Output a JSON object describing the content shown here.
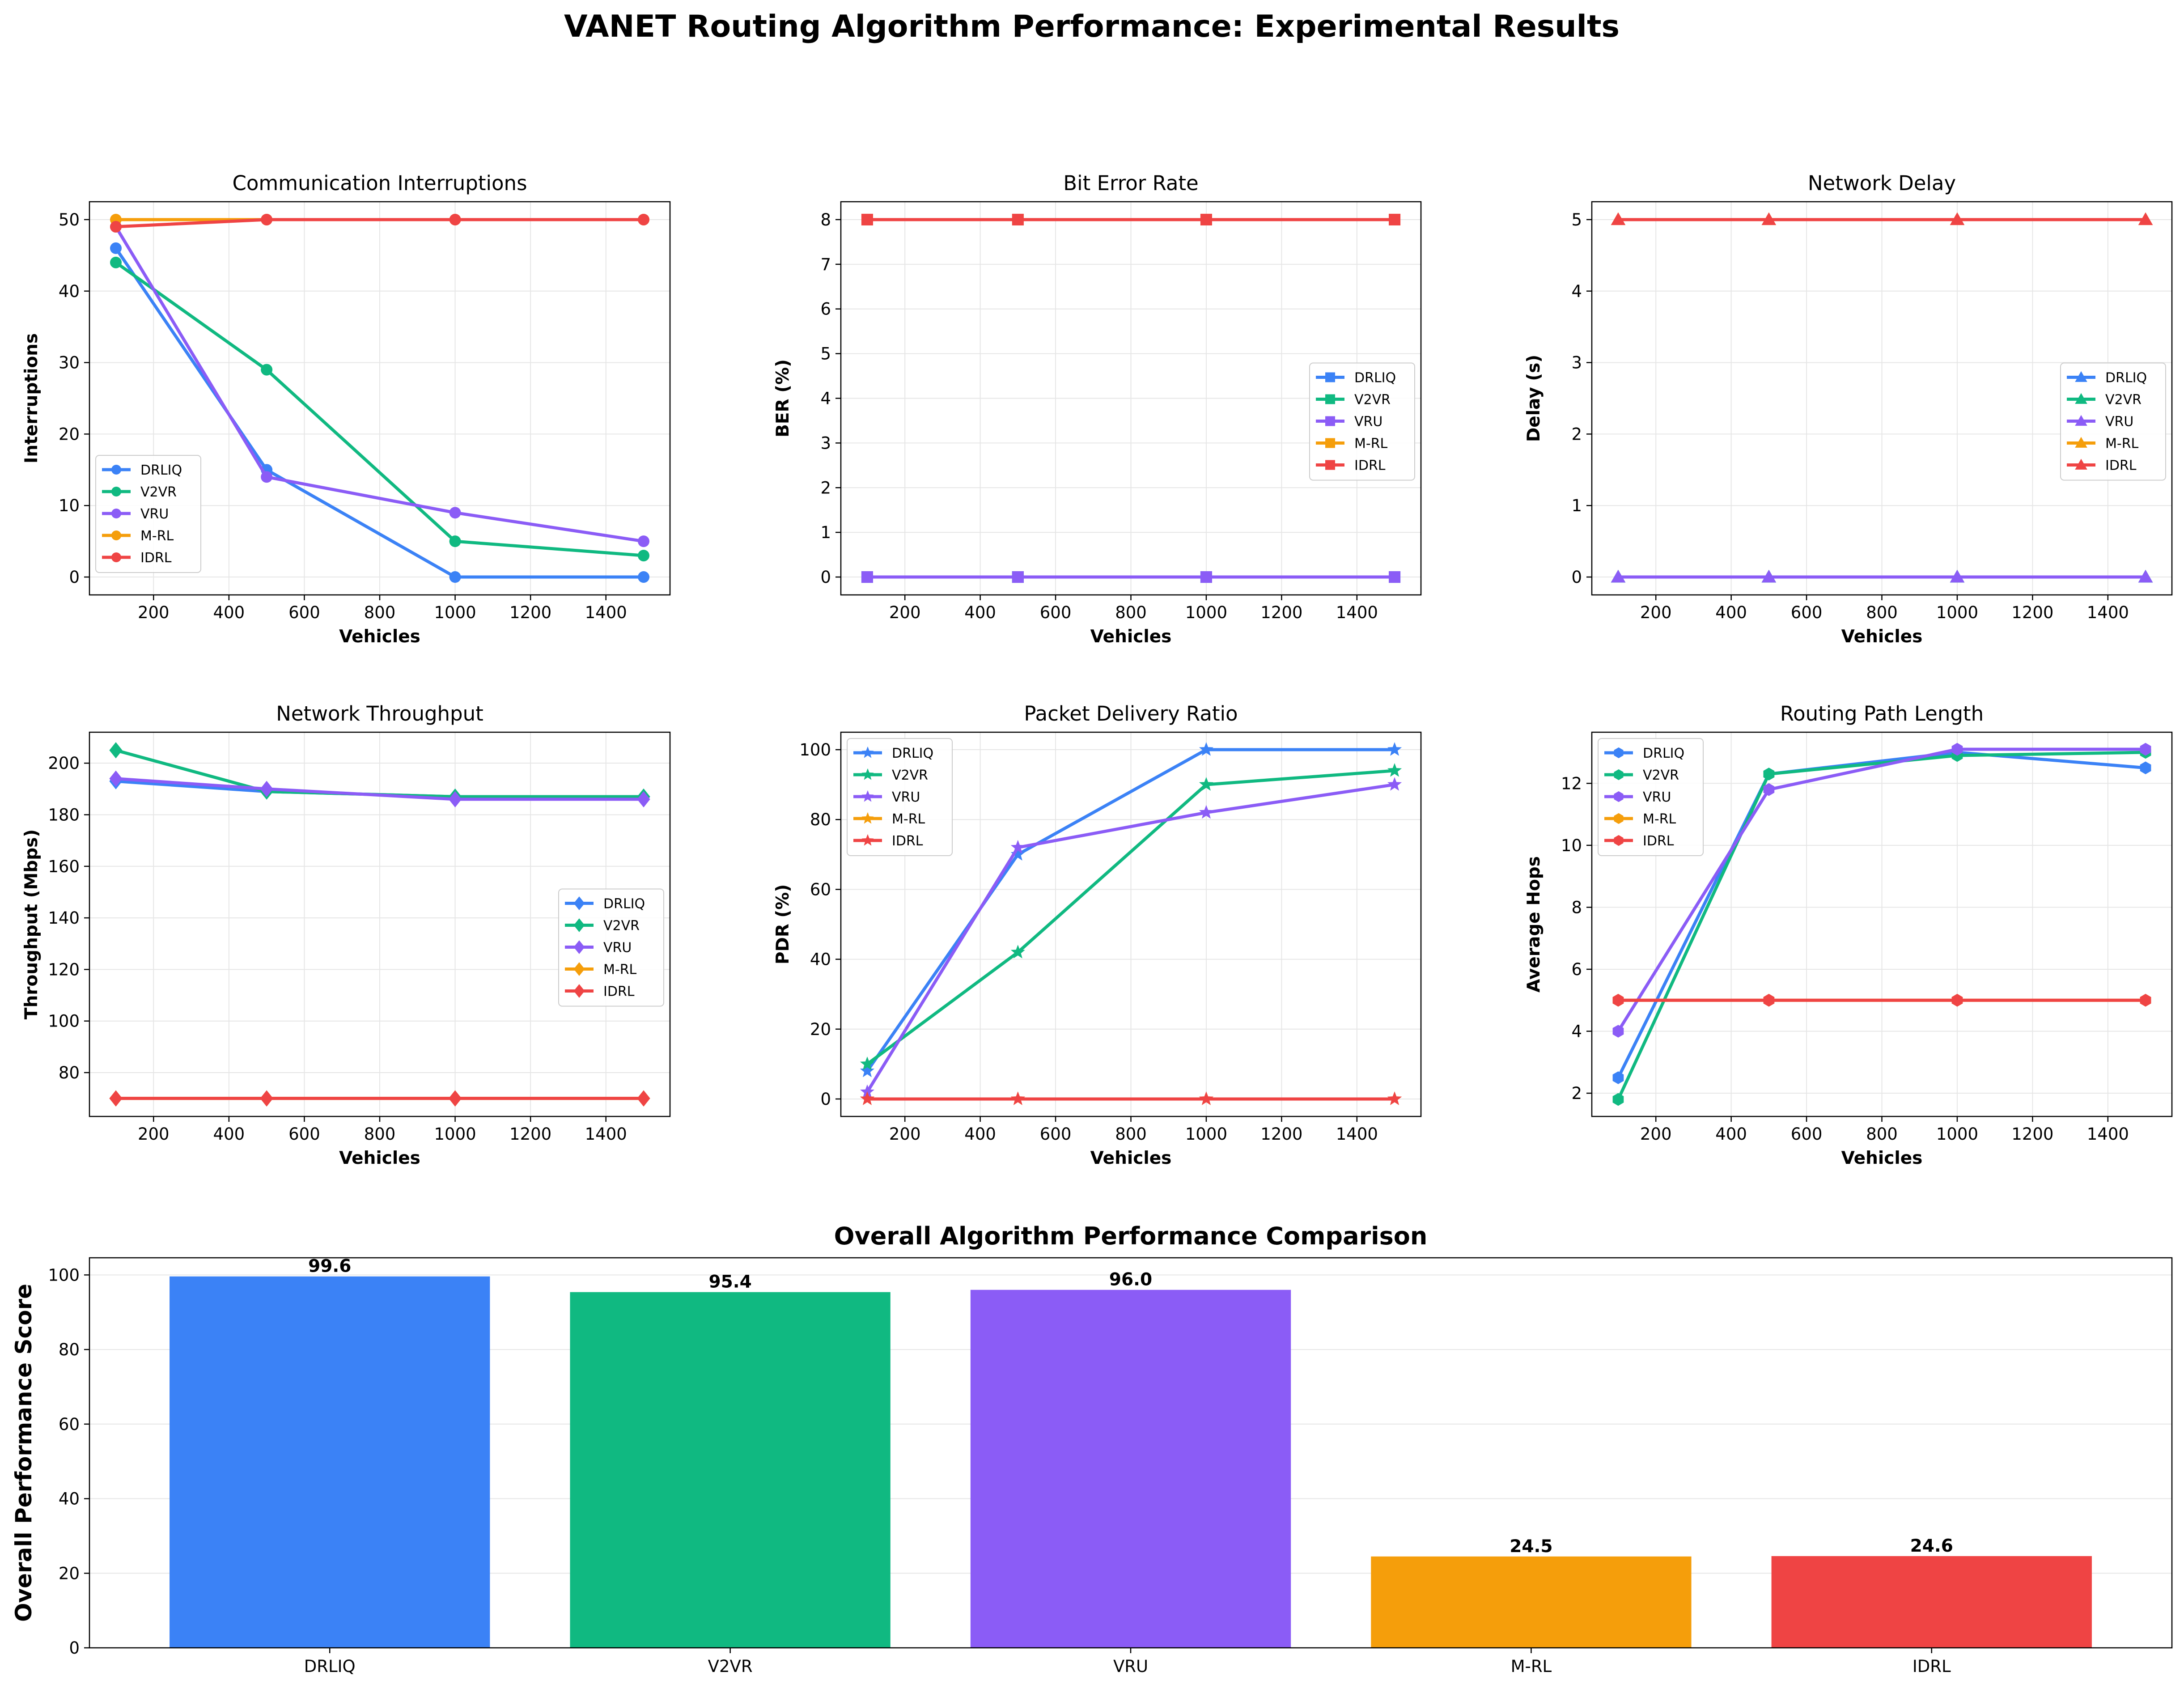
{
  "figure": {
    "title": "VANET Routing Algorithm Performance: Experimental Results"
  },
  "algorithms": [
    "DRLIQ",
    "V2VR",
    "VRU",
    "M-RL",
    "IDRL"
  ],
  "colors": {
    "DRLIQ": "#3b82f6",
    "V2VR": "#10b981",
    "VRU": "#8b5cf6",
    "M-RL": "#f59e0b",
    "IDRL": "#ef4444"
  },
  "chart_data": [
    {
      "id": "interruptions",
      "type": "line",
      "title": "Communication Interruptions",
      "xlabel": "Vehicles",
      "ylabel": "Interruptions",
      "marker": "circle",
      "x": [
        100,
        500,
        1000,
        1500
      ],
      "xlim": [
        30,
        1570
      ],
      "xticks": [
        200,
        400,
        600,
        800,
        1000,
        1200,
        1400
      ],
      "ylim": [
        -2.5,
        52.5
      ],
      "yticks": [
        0,
        10,
        20,
        30,
        40,
        50
      ],
      "grid": true,
      "legend_position": "lower-left",
      "series": [
        {
          "name": "DRLIQ",
          "values": [
            46,
            15,
            0,
            0
          ]
        },
        {
          "name": "V2VR",
          "values": [
            44,
            29,
            5,
            3
          ]
        },
        {
          "name": "VRU",
          "values": [
            49,
            14,
            9,
            5
          ]
        },
        {
          "name": "M-RL",
          "values": [
            50,
            50,
            50,
            50
          ]
        },
        {
          "name": "IDRL",
          "values": [
            49,
            50,
            50,
            50
          ]
        }
      ]
    },
    {
      "id": "ber",
      "type": "line",
      "title": "Bit Error Rate",
      "xlabel": "Vehicles",
      "ylabel": "BER (%)",
      "marker": "square",
      "x": [
        100,
        500,
        1000,
        1500
      ],
      "xlim": [
        30,
        1570
      ],
      "xticks": [
        200,
        400,
        600,
        800,
        1000,
        1200,
        1400
      ],
      "ylim": [
        -0.4,
        8.4
      ],
      "yticks": [
        0,
        1,
        2,
        3,
        4,
        5,
        6,
        7,
        8
      ],
      "grid": true,
      "legend_position": "center-right",
      "series": [
        {
          "name": "DRLIQ",
          "values": [
            0,
            0,
            0,
            0
          ]
        },
        {
          "name": "V2VR",
          "values": [
            0,
            0,
            0,
            0
          ]
        },
        {
          "name": "VRU",
          "values": [
            0,
            0,
            0,
            0
          ]
        },
        {
          "name": "M-RL",
          "values": [
            8,
            8,
            8,
            8
          ]
        },
        {
          "name": "IDRL",
          "values": [
            8,
            8,
            8,
            8
          ]
        }
      ]
    },
    {
      "id": "delay",
      "type": "line",
      "title": "Network Delay",
      "xlabel": "Vehicles",
      "ylabel": "Delay (s)",
      "marker": "triangle",
      "x": [
        100,
        500,
        1000,
        1500
      ],
      "xlim": [
        30,
        1570
      ],
      "xticks": [
        200,
        400,
        600,
        800,
        1000,
        1200,
        1400
      ],
      "ylim": [
        -0.25,
        5.25
      ],
      "yticks": [
        0,
        1,
        2,
        3,
        4,
        5
      ],
      "grid": true,
      "legend_position": "center-right",
      "series": [
        {
          "name": "DRLIQ",
          "values": [
            0,
            0,
            0,
            0
          ]
        },
        {
          "name": "V2VR",
          "values": [
            0,
            0,
            0,
            0
          ]
        },
        {
          "name": "VRU",
          "values": [
            0,
            0,
            0,
            0
          ]
        },
        {
          "name": "M-RL",
          "values": [
            5,
            5,
            5,
            5
          ]
        },
        {
          "name": "IDRL",
          "values": [
            5,
            5,
            5,
            5
          ]
        }
      ]
    },
    {
      "id": "throughput",
      "type": "line",
      "title": "Network Throughput",
      "xlabel": "Vehicles",
      "ylabel": "Throughput (Mbps)",
      "marker": "diamond",
      "x": [
        100,
        500,
        1000,
        1500
      ],
      "xlim": [
        30,
        1570
      ],
      "xticks": [
        200,
        400,
        600,
        800,
        1000,
        1200,
        1400
      ],
      "ylim": [
        63,
        212
      ],
      "yticks": [
        80,
        100,
        120,
        140,
        160,
        180,
        200
      ],
      "grid": true,
      "legend_position": "center-right",
      "series": [
        {
          "name": "DRLIQ",
          "values": [
            193,
            189,
            187,
            187
          ]
        },
        {
          "name": "V2VR",
          "values": [
            205,
            189,
            187,
            187
          ]
        },
        {
          "name": "VRU",
          "values": [
            194,
            190,
            186,
            186
          ]
        },
        {
          "name": "M-RL",
          "values": [
            70,
            70,
            70,
            70
          ]
        },
        {
          "name": "IDRL",
          "values": [
            70,
            70,
            70,
            70
          ]
        }
      ]
    },
    {
      "id": "pdr",
      "type": "line",
      "title": "Packet Delivery Ratio",
      "xlabel": "Vehicles",
      "ylabel": "PDR (%)",
      "marker": "star",
      "x": [
        100,
        500,
        1000,
        1500
      ],
      "xlim": [
        30,
        1570
      ],
      "xticks": [
        200,
        400,
        600,
        800,
        1000,
        1200,
        1400
      ],
      "ylim": [
        -5,
        105
      ],
      "yticks": [
        0,
        20,
        40,
        60,
        80,
        100
      ],
      "grid": true,
      "legend_position": "upper-left",
      "series": [
        {
          "name": "DRLIQ",
          "values": [
            8,
            70,
            100,
            100
          ]
        },
        {
          "name": "V2VR",
          "values": [
            10,
            42,
            90,
            94
          ]
        },
        {
          "name": "VRU",
          "values": [
            2,
            72,
            82,
            90
          ]
        },
        {
          "name": "M-RL",
          "values": [
            0,
            0,
            0,
            0
          ]
        },
        {
          "name": "IDRL",
          "values": [
            0,
            0,
            0,
            0
          ]
        }
      ]
    },
    {
      "id": "hops",
      "type": "line",
      "title": "Routing Path Length",
      "xlabel": "Vehicles",
      "ylabel": "Average Hops",
      "marker": "hexagon",
      "x": [
        100,
        500,
        1000,
        1500
      ],
      "xlim": [
        30,
        1570
      ],
      "xticks": [
        200,
        400,
        600,
        800,
        1000,
        1200,
        1400
      ],
      "ylim": [
        1.25,
        13.65
      ],
      "yticks": [
        2,
        4,
        6,
        8,
        10,
        12
      ],
      "grid": true,
      "legend_position": "upper-left",
      "series": [
        {
          "name": "DRLIQ",
          "values": [
            2.5,
            12.3,
            13.0,
            12.5
          ]
        },
        {
          "name": "V2VR",
          "values": [
            1.8,
            12.3,
            12.9,
            13.0
          ]
        },
        {
          "name": "VRU",
          "values": [
            4.0,
            11.8,
            13.1,
            13.1
          ]
        },
        {
          "name": "M-RL",
          "values": [
            5,
            5,
            5,
            5
          ]
        },
        {
          "name": "IDRL",
          "values": [
            5,
            5,
            5,
            5
          ]
        }
      ]
    },
    {
      "id": "overall",
      "type": "bar",
      "title": "Overall Algorithm Performance Comparison",
      "xlabel": "",
      "ylabel": "Overall Performance Score",
      "categories": [
        "DRLIQ",
        "V2VR",
        "VRU",
        "M-RL",
        "IDRL"
      ],
      "values": [
        99.6,
        95.4,
        96.0,
        24.5,
        24.6
      ],
      "value_labels": [
        "99.6",
        "95.4",
        "96.0",
        "24.5",
        "24.6"
      ],
      "ylim": [
        0,
        104.6
      ],
      "yticks": [
        0,
        20,
        40,
        60,
        80,
        100
      ],
      "grid": true
    }
  ]
}
